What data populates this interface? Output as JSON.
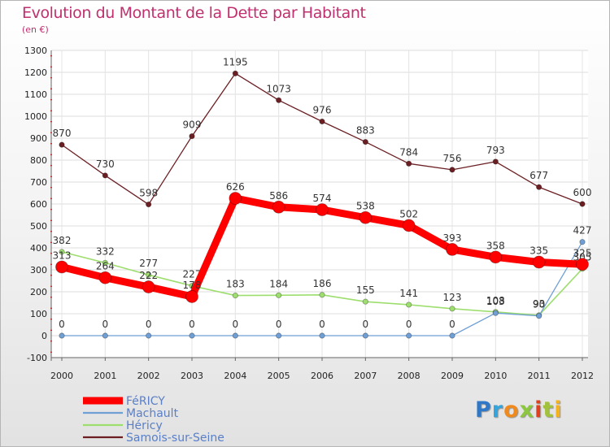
{
  "header": {
    "title": "Evolution du Montant de la Dette par Habitant",
    "subtitle": "(en €)"
  },
  "logo": {
    "text": "Proxiti"
  },
  "chart_data": {
    "type": "line",
    "title": "Evolution du Montant de la Dette par Habitant",
    "subtitle": "(en €)",
    "xlabel": "",
    "ylabel": "",
    "ylim": [
      -100,
      1300
    ],
    "ytick_step": 100,
    "grid": true,
    "legend_position": "bottom-left",
    "categories": [
      "2000",
      "2001",
      "2002",
      "2003",
      "2004",
      "2005",
      "2006",
      "2007",
      "2008",
      "2009",
      "2010",
      "2011",
      "2012"
    ],
    "series": [
      {
        "name": "Samois-sur-Seine",
        "color": "#6b1f23",
        "width": 1.3,
        "marker": 3.2,
        "values": [
          870,
          730,
          598,
          909,
          1195,
          1073,
          976,
          883,
          784,
          756,
          793,
          677,
          600
        ]
      },
      {
        "name": "Héricy",
        "color": "#9dde6e",
        "width": 1.6,
        "marker": 3.2,
        "values": [
          382,
          332,
          277,
          227,
          183,
          184,
          186,
          155,
          141,
          123,
          108,
          93,
          305
        ]
      },
      {
        "name": "Machault",
        "color": "#6f9fd4",
        "width": 1.3,
        "marker": 3.2,
        "values": [
          0,
          0,
          0,
          0,
          0,
          0,
          0,
          0,
          0,
          0,
          103,
          90,
          427
        ]
      },
      {
        "name": "FéRICY",
        "color": "#ff0000",
        "width": 9,
        "marker": 7.5,
        "values": [
          313,
          264,
          222,
          178,
          626,
          586,
          574,
          538,
          502,
          393,
          358,
          335,
          325
        ]
      }
    ]
  }
}
